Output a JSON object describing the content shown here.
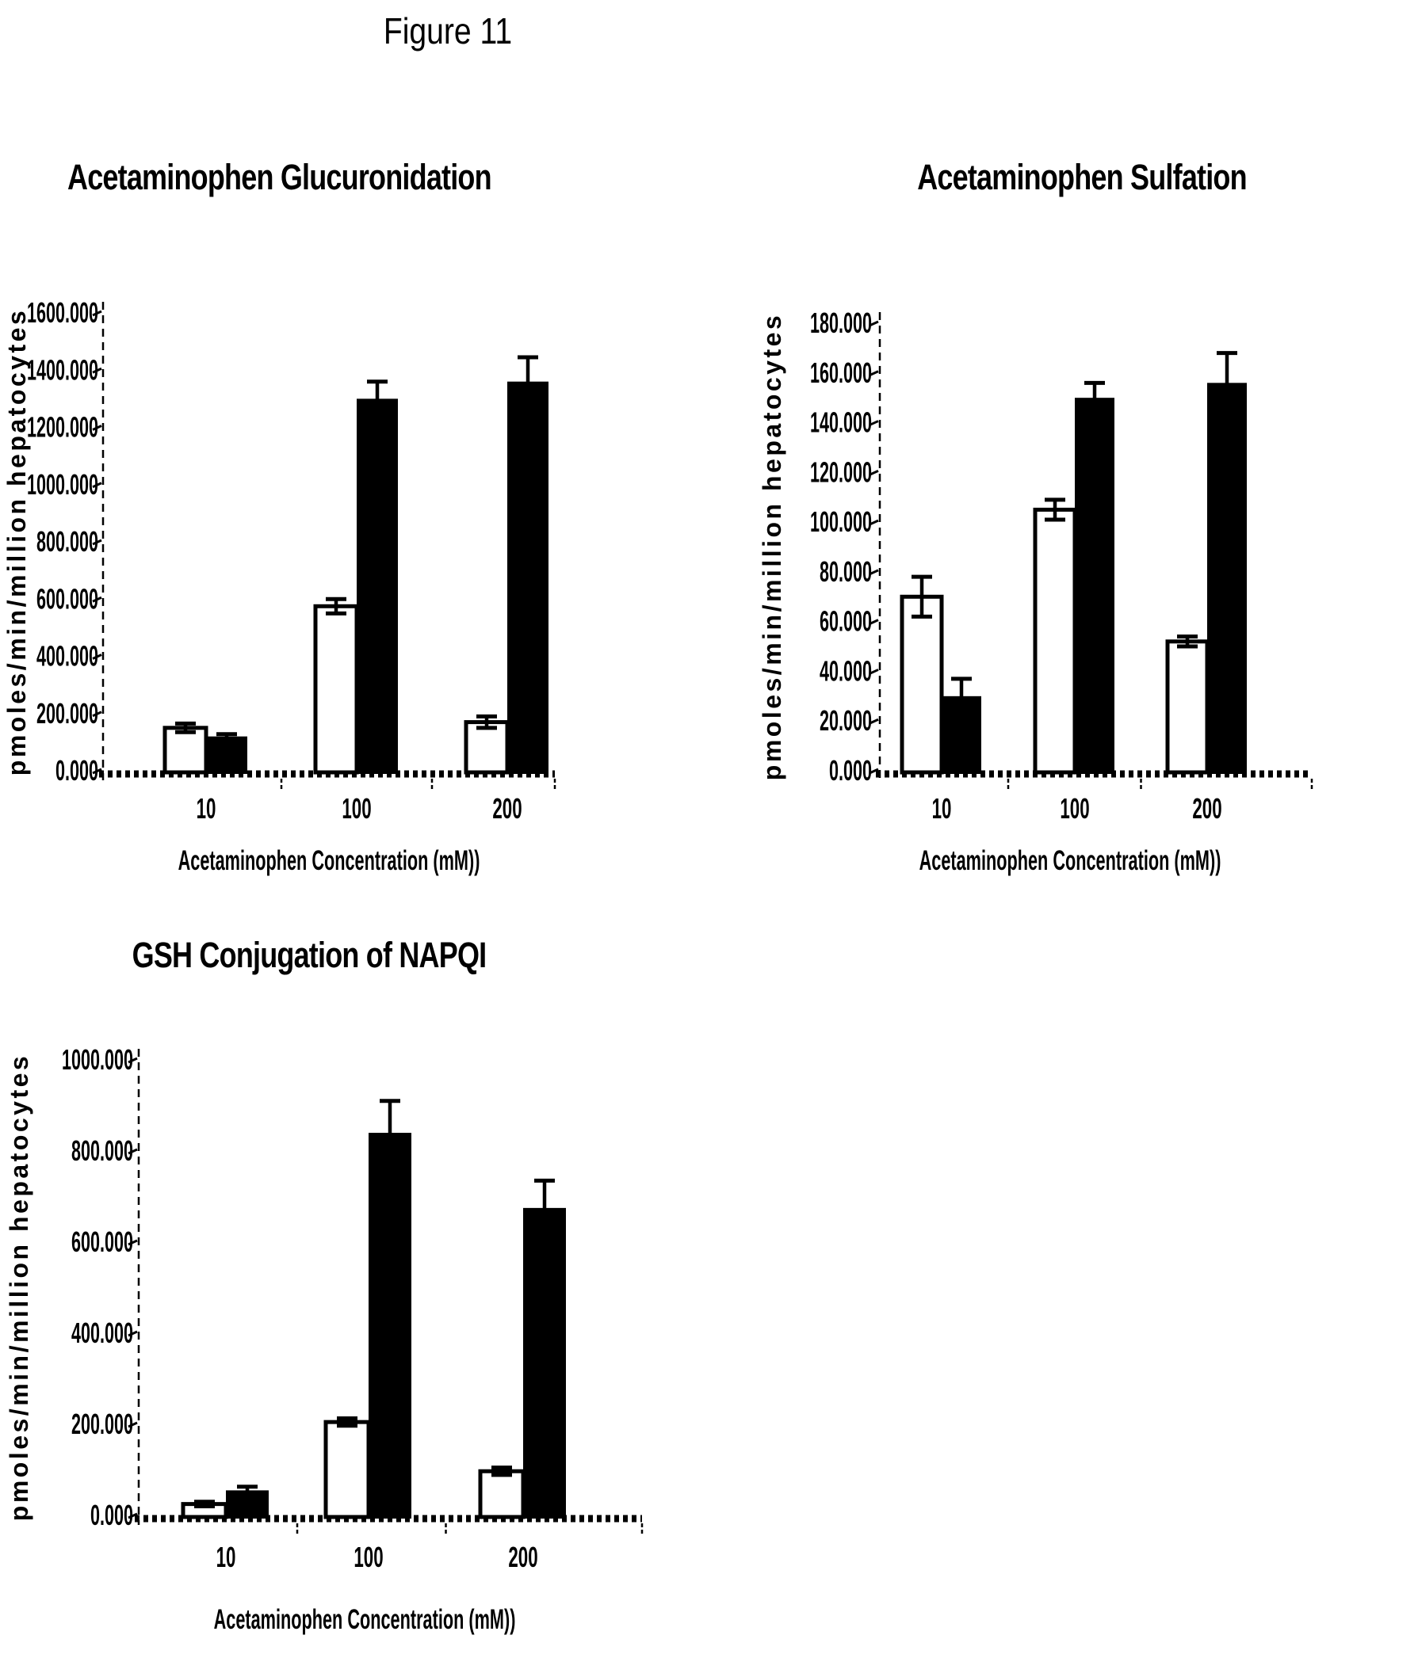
{
  "figure_label": "Figure 11",
  "colors": {
    "background": "#ffffff",
    "ink": "#000000",
    "open_bar_fill": "#ffffff",
    "filled_bar_fill": "#000000"
  },
  "chart_data": [
    {
      "type": "bar",
      "title": "Acetaminophen Glucuronidation",
      "xlabel": "Acetaminophen Concentration (mM))",
      "ylabel": "pmoles/min/million hepatocytes",
      "categories": [
        "10",
        "100",
        "200"
      ],
      "series": [
        {
          "name": "open-bar",
          "fill": "#ffffff",
          "values": [
            150,
            575,
            170
          ],
          "errors": [
            15,
            25,
            20
          ]
        },
        {
          "name": "filled-bar",
          "fill": "#000000",
          "values": [
            120,
            1300,
            1360
          ],
          "errors": [
            8,
            60,
            85
          ]
        }
      ],
      "ylim": [
        0,
        1600
      ],
      "ytick_step": 200,
      "ytick_labels": [
        "0.000",
        "200.000",
        "400.000",
        "600.000",
        "800.000",
        "1000.000",
        "1200.000",
        "1400.000",
        "1600.000"
      ],
      "grid": false,
      "legend": "none",
      "error_bars": true
    },
    {
      "type": "bar",
      "title": "Acetaminophen Sulfation",
      "xlabel": "Acetaminophen Concentration (mM))",
      "ylabel": "pmoles/min/million hepatocytes",
      "categories": [
        "10",
        "100",
        "200"
      ],
      "series": [
        {
          "name": "open-bar",
          "fill": "#ffffff",
          "values": [
            70,
            105,
            52
          ],
          "errors": [
            8,
            4,
            2
          ]
        },
        {
          "name": "filled-bar",
          "fill": "#000000",
          "values": [
            30,
            150,
            156
          ],
          "errors": [
            7,
            6,
            12
          ]
        }
      ],
      "ylim": [
        0,
        180
      ],
      "ytick_step": 20,
      "ytick_labels": [
        "0.000",
        "20.000",
        "40.000",
        "60.000",
        "80.000",
        "100.000",
        "120.000",
        "140.000",
        "160.000",
        "180.000"
      ],
      "grid": false,
      "legend": "none",
      "error_bars": true
    },
    {
      "type": "bar",
      "title": "GSH Conjugation of NAPQI",
      "xlabel": "Acetaminophen Concentration (mM))",
      "ylabel": "pmoles/min/million hepatocytes",
      "categories": [
        "10",
        "100",
        "200"
      ],
      "series": [
        {
          "name": "open-bar",
          "fill": "#ffffff",
          "values": [
            25,
            205,
            97
          ],
          "errors": [
            5,
            8,
            8
          ]
        },
        {
          "name": "filled-bar",
          "fill": "#000000",
          "values": [
            55,
            840,
            675
          ],
          "errors": [
            8,
            70,
            60
          ]
        }
      ],
      "ylim": [
        0,
        1000
      ],
      "ytick_step": 200,
      "ytick_labels": [
        "0.000",
        "200.000",
        "400.000",
        "600.000",
        "800.000",
        "1000.000"
      ],
      "grid": false,
      "legend": "none",
      "error_bars": true
    }
  ]
}
